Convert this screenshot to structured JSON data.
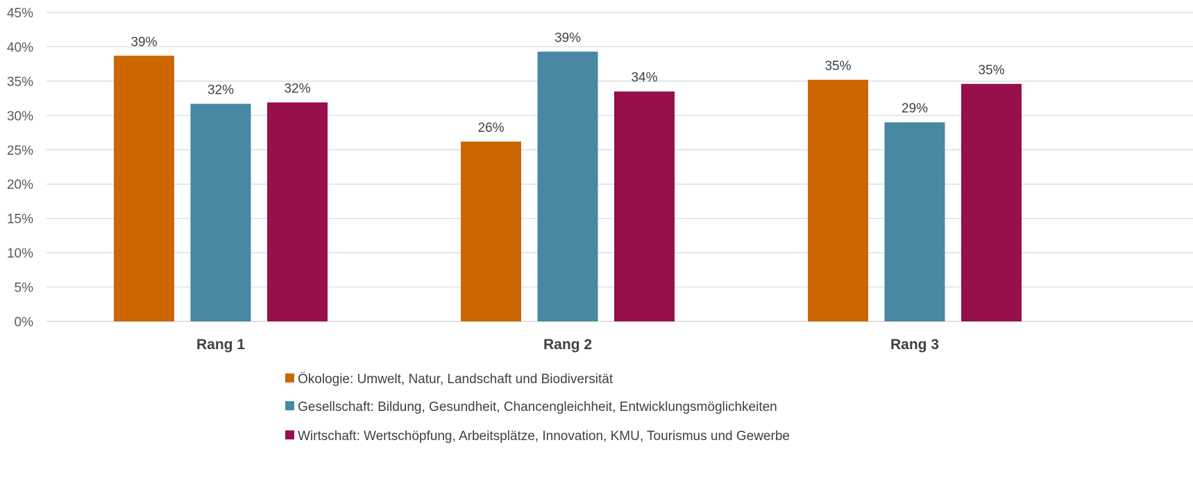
{
  "chart_data": {
    "type": "bar",
    "categories": [
      "Rang 1",
      "Rang 2",
      "Rang 3"
    ],
    "series": [
      {
        "name": "Ökologie: Umwelt, Natur, Landschaft und Biodiversität",
        "color": "#cc6600",
        "values": [
          38.7,
          26.2,
          35.2
        ],
        "labels": [
          "39%",
          "26%",
          "35%"
        ]
      },
      {
        "name": "Gesellschaft: Bildung, Gesundheit, Chancengleichheit, Entwicklungsmöglichkeiten",
        "color": "#4888a2",
        "values": [
          31.7,
          39.3,
          29.0
        ],
        "labels": [
          "32%",
          "39%",
          "29%"
        ]
      },
      {
        "name": "Wirtschaft: Wertschöpfung, Arbeitsplätze, Innovation, KMU, Tourismus und Gewerbe",
        "color": "#970f4b",
        "values": [
          31.9,
          33.5,
          34.6
        ],
        "labels": [
          "32%",
          "34%",
          "35%"
        ]
      }
    ],
    "yticks": [
      0,
      5,
      10,
      15,
      20,
      25,
      30,
      35,
      40,
      45
    ],
    "ytick_labels": [
      "0%",
      "5%",
      "10%",
      "15%",
      "20%",
      "25%",
      "30%",
      "35%",
      "40%",
      "45%"
    ],
    "ylim": [
      0,
      45
    ],
    "title": "",
    "xlabel": "",
    "ylabel": "",
    "grid": true,
    "legend_position": "bottom"
  }
}
